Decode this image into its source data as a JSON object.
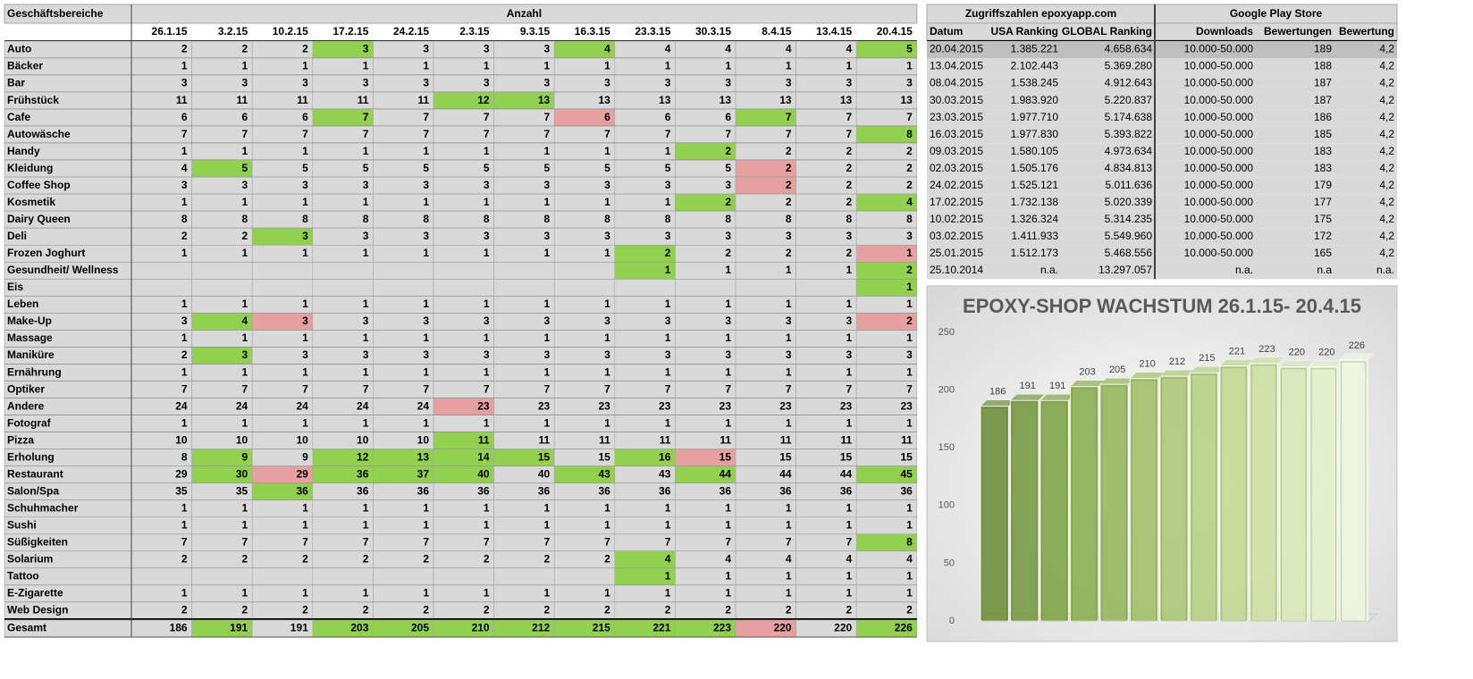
{
  "table": {
    "header": "Geschäftsbereiche",
    "group": "Anzahl",
    "columns": [
      "26.1.15",
      "3.2.15",
      "10.2.15",
      "17.2.15",
      "24.2.15",
      "2.3.15",
      "9.3.15",
      "16.3.15",
      "23.3.15",
      "30.3.15",
      "8.4.15",
      "13.4.15",
      "20.4.15"
    ],
    "rows": [
      {
        "label": "Auto",
        "values": [
          2,
          2,
          2,
          3,
          3,
          3,
          3,
          4,
          4,
          4,
          4,
          4,
          5
        ],
        "fill": [
          null,
          null,
          null,
          "#92d050",
          null,
          null,
          null,
          "#92d050",
          null,
          null,
          null,
          null,
          "#92d050"
        ]
      },
      {
        "label": "Bäcker",
        "values": [
          1,
          1,
          1,
          1,
          1,
          1,
          1,
          1,
          1,
          1,
          1,
          1,
          1
        ]
      },
      {
        "label": "Bar",
        "values": [
          3,
          3,
          3,
          3,
          3,
          3,
          3,
          3,
          3,
          3,
          3,
          3,
          3
        ]
      },
      {
        "label": "Frühstück",
        "values": [
          11,
          11,
          11,
          11,
          11,
          12,
          13,
          13,
          13,
          13,
          13,
          13,
          13
        ],
        "fill": [
          null,
          null,
          null,
          null,
          null,
          "#92d050",
          "#92d050",
          null,
          null,
          null,
          null,
          null,
          null
        ]
      },
      {
        "label": "Cafe",
        "values": [
          6,
          6,
          6,
          7,
          7,
          7,
          7,
          6,
          6,
          6,
          7,
          7,
          7
        ],
        "fill": [
          null,
          null,
          null,
          "#92d050",
          null,
          null,
          null,
          "#e6a0a0",
          null,
          null,
          "#92d050",
          null,
          null
        ]
      },
      {
        "label": "Autowäsche",
        "values": [
          7,
          7,
          7,
          7,
          7,
          7,
          7,
          7,
          7,
          7,
          7,
          7,
          8
        ],
        "fill": [
          null,
          null,
          null,
          null,
          null,
          null,
          null,
          null,
          null,
          null,
          null,
          null,
          "#92d050"
        ]
      },
      {
        "label": "Handy",
        "values": [
          1,
          1,
          1,
          1,
          1,
          1,
          1,
          1,
          1,
          2,
          2,
          2,
          2
        ],
        "fill": [
          null,
          null,
          null,
          null,
          null,
          null,
          null,
          null,
          null,
          "#92d050",
          null,
          null,
          null
        ]
      },
      {
        "label": "Kleidung",
        "values": [
          4,
          5,
          5,
          5,
          5,
          5,
          5,
          5,
          5,
          5,
          2,
          2,
          2
        ],
        "fill": [
          null,
          "#92d050",
          null,
          null,
          null,
          null,
          null,
          null,
          null,
          null,
          "#e6a0a0",
          null,
          null
        ]
      },
      {
        "label": "Coffee Shop",
        "values": [
          3,
          3,
          3,
          3,
          3,
          3,
          3,
          3,
          3,
          3,
          2,
          2,
          2
        ],
        "fill": [
          null,
          null,
          null,
          null,
          null,
          null,
          null,
          null,
          null,
          null,
          "#e6a0a0",
          null,
          null
        ]
      },
      {
        "label": "Kosmetik",
        "values": [
          1,
          1,
          1,
          1,
          1,
          1,
          1,
          1,
          1,
          2,
          2,
          2,
          4
        ],
        "fill": [
          null,
          null,
          null,
          null,
          null,
          null,
          null,
          null,
          null,
          "#92d050",
          null,
          null,
          "#92d050"
        ]
      },
      {
        "label": "Dairy Queen",
        "values": [
          8,
          8,
          8,
          8,
          8,
          8,
          8,
          8,
          8,
          8,
          8,
          8,
          8
        ]
      },
      {
        "label": "Deli",
        "values": [
          2,
          2,
          3,
          3,
          3,
          3,
          3,
          3,
          3,
          3,
          3,
          3,
          3
        ],
        "fill": [
          null,
          null,
          "#92d050",
          null,
          null,
          null,
          null,
          null,
          null,
          null,
          null,
          null,
          null
        ]
      },
      {
        "label": "Frozen Joghurt",
        "values": [
          1,
          1,
          1,
          1,
          1,
          1,
          1,
          1,
          2,
          2,
          2,
          2,
          1
        ],
        "fill": [
          null,
          null,
          null,
          null,
          null,
          null,
          null,
          null,
          "#92d050",
          null,
          null,
          null,
          "#e6a0a0"
        ]
      },
      {
        "label": "Gesundheit/ Wellness",
        "values": [
          null,
          null,
          null,
          null,
          null,
          null,
          null,
          null,
          1,
          1,
          1,
          1,
          2
        ],
        "fill": [
          null,
          null,
          null,
          null,
          null,
          null,
          null,
          null,
          "#92d050",
          null,
          null,
          null,
          "#92d050"
        ]
      },
      {
        "label": "Eis",
        "values": [
          null,
          null,
          null,
          null,
          null,
          null,
          null,
          null,
          null,
          null,
          null,
          null,
          1
        ],
        "fill": [
          null,
          null,
          null,
          null,
          null,
          null,
          null,
          null,
          null,
          null,
          null,
          null,
          "#92d050"
        ]
      },
      {
        "label": "Leben",
        "values": [
          1,
          1,
          1,
          1,
          1,
          1,
          1,
          1,
          1,
          1,
          1,
          1,
          1
        ]
      },
      {
        "label": "Make-Up",
        "values": [
          3,
          4,
          3,
          3,
          3,
          3,
          3,
          3,
          3,
          3,
          3,
          3,
          2
        ],
        "fill": [
          null,
          "#92d050",
          "#e6a0a0",
          null,
          null,
          null,
          null,
          null,
          null,
          null,
          null,
          null,
          "#e6a0a0"
        ]
      },
      {
        "label": "Massage",
        "values": [
          1,
          1,
          1,
          1,
          1,
          1,
          1,
          1,
          1,
          1,
          1,
          1,
          1
        ]
      },
      {
        "label": "Maniküre",
        "values": [
          2,
          3,
          3,
          3,
          3,
          3,
          3,
          3,
          3,
          3,
          3,
          3,
          3
        ],
        "fill": [
          null,
          "#92d050",
          null,
          null,
          null,
          null,
          null,
          null,
          null,
          null,
          null,
          null,
          null
        ]
      },
      {
        "label": "Ernährung",
        "values": [
          1,
          1,
          1,
          1,
          1,
          1,
          1,
          1,
          1,
          1,
          1,
          1,
          1
        ]
      },
      {
        "label": "Optiker",
        "values": [
          7,
          7,
          7,
          7,
          7,
          7,
          7,
          7,
          7,
          7,
          7,
          7,
          7
        ]
      },
      {
        "label": "Andere",
        "values": [
          24,
          24,
          24,
          24,
          24,
          23,
          23,
          23,
          23,
          23,
          23,
          23,
          23
        ],
        "fill": [
          null,
          null,
          null,
          null,
          null,
          "#e6a0a0",
          null,
          null,
          null,
          null,
          null,
          null,
          null
        ]
      },
      {
        "label": "Fotograf",
        "values": [
          1,
          1,
          1,
          1,
          1,
          1,
          1,
          1,
          1,
          1,
          1,
          1,
          1
        ]
      },
      {
        "label": "Pizza",
        "values": [
          10,
          10,
          10,
          10,
          10,
          11,
          11,
          11,
          11,
          11,
          11,
          11,
          11
        ],
        "fill": [
          null,
          null,
          null,
          null,
          null,
          "#92d050",
          null,
          null,
          null,
          null,
          null,
          null,
          null
        ]
      },
      {
        "label": "Erholung",
        "values": [
          8,
          9,
          9,
          12,
          13,
          14,
          15,
          15,
          16,
          15,
          15,
          15,
          15
        ],
        "fill": [
          null,
          "#92d050",
          null,
          "#92d050",
          "#92d050",
          "#92d050",
          "#92d050",
          null,
          "#92d050",
          "#e6a0a0",
          null,
          null,
          null
        ]
      },
      {
        "label": "Restaurant",
        "values": [
          29,
          30,
          29,
          36,
          37,
          40,
          40,
          43,
          43,
          44,
          44,
          44,
          45
        ],
        "fill": [
          null,
          "#92d050",
          "#e6a0a0",
          "#92d050",
          "#92d050",
          "#92d050",
          null,
          "#92d050",
          null,
          "#92d050",
          null,
          null,
          "#92d050"
        ]
      },
      {
        "label": "Salon/Spa",
        "values": [
          35,
          35,
          36,
          36,
          36,
          36,
          36,
          36,
          36,
          36,
          36,
          36,
          36
        ],
        "fill": [
          null,
          null,
          "#92d050",
          null,
          null,
          null,
          null,
          null,
          null,
          null,
          null,
          null,
          null
        ]
      },
      {
        "label": "Schuhmacher",
        "values": [
          1,
          1,
          1,
          1,
          1,
          1,
          1,
          1,
          1,
          1,
          1,
          1,
          1
        ]
      },
      {
        "label": "Sushi",
        "values": [
          1,
          1,
          1,
          1,
          1,
          1,
          1,
          1,
          1,
          1,
          1,
          1,
          1
        ]
      },
      {
        "label": "Süßigkeiten",
        "values": [
          7,
          7,
          7,
          7,
          7,
          7,
          7,
          7,
          7,
          7,
          7,
          7,
          8
        ],
        "fill": [
          null,
          null,
          null,
          null,
          null,
          null,
          null,
          null,
          null,
          null,
          null,
          null,
          "#92d050"
        ]
      },
      {
        "label": "Solarium",
        "values": [
          2,
          2,
          2,
          2,
          2,
          2,
          2,
          2,
          4,
          4,
          4,
          4,
          4
        ],
        "fill": [
          null,
          null,
          null,
          null,
          null,
          null,
          null,
          null,
          "#92d050",
          null,
          null,
          null,
          null
        ]
      },
      {
        "label": "Tattoo",
        "values": [
          null,
          null,
          null,
          null,
          null,
          null,
          null,
          null,
          1,
          1,
          1,
          1,
          1
        ],
        "fill": [
          null,
          null,
          null,
          null,
          null,
          null,
          null,
          null,
          "#92d050",
          null,
          null,
          null,
          null
        ]
      },
      {
        "label": "E-Zigarette",
        "values": [
          1,
          1,
          1,
          1,
          1,
          1,
          1,
          1,
          1,
          1,
          1,
          1,
          1
        ]
      },
      {
        "label": "Web Design",
        "values": [
          2,
          2,
          2,
          2,
          2,
          2,
          2,
          2,
          2,
          2,
          2,
          2,
          2
        ]
      }
    ],
    "total": {
      "label": "Gesamt",
      "values": [
        186,
        191,
        191,
        203,
        205,
        210,
        212,
        215,
        221,
        223,
        220,
        220,
        226
      ],
      "fill": [
        null,
        "#92d050",
        null,
        "#92d050",
        "#92d050",
        "#92d050",
        "#92d050",
        "#92d050",
        "#92d050",
        "#92d050",
        "#e6a0a0",
        null,
        "#92d050"
      ]
    }
  },
  "stats": {
    "group1": "Zugriffszahlen epoxyapp.com",
    "group2": "Google Play Store",
    "columns": [
      "Datum",
      "USA Ranking",
      "GLOBAL Ranking",
      "Downloads",
      "Bewertungen",
      "Bewertung"
    ],
    "rows": [
      [
        "20.04.2015",
        "1.385.221",
        "4.658.634",
        "10.000-50.000",
        "189",
        "4,2"
      ],
      [
        "13.04.2015",
        "2.102.443",
        "5.369.280",
        "10.000-50.000",
        "188",
        "4,2"
      ],
      [
        "08.04.2015",
        "1.538.245",
        "4.912.643",
        "10.000-50.000",
        "187",
        "4,2"
      ],
      [
        "30.03.2015",
        "1.983.920",
        "5.220.837",
        "10.000-50.000",
        "187",
        "4,2"
      ],
      [
        "23.03.2015",
        "1.977.710",
        "5.174.638",
        "10.000-50.000",
        "186",
        "4,2"
      ],
      [
        "16.03.2015",
        "1.977.830",
        "5.393.822",
        "10.000-50.000",
        "185",
        "4,2"
      ],
      [
        "09.03.2015",
        "1.580.105",
        "4.973.634",
        "10.000-50.000",
        "183",
        "4,2"
      ],
      [
        "02.03.2015",
        "1.505.176",
        "4.834.813",
        "10.000-50.000",
        "183",
        "4,2"
      ],
      [
        "24.02.2015",
        "1.525.121",
        "5.011.636",
        "10.000-50.000",
        "179",
        "4,2"
      ],
      [
        "17.02.2015",
        "1.732.138",
        "5.020.339",
        "10.000-50.000",
        "177",
        "4,2"
      ],
      [
        "10.02.2015",
        "1.326.324",
        "5.314.235",
        "10.000-50.000",
        "175",
        "4,2"
      ],
      [
        "03.02.2015",
        "1.411.933",
        "5.549.960",
        "10.000-50.000",
        "172",
        "4,2"
      ],
      [
        "25.01.2015",
        "1.512.173",
        "5.468.556",
        "10.000-50.000",
        "165",
        "4,2"
      ],
      [
        "25.10.2014",
        "n.a.",
        "13.297.057",
        "n.a.",
        "n.a",
        "n.a."
      ]
    ]
  },
  "chart_data": {
    "type": "bar",
    "title": "EPOXY-SHOP WACHSTUM 26.1.15- 20.4.15",
    "values": [
      186,
      191,
      191,
      203,
      205,
      210,
      212,
      215,
      221,
      223,
      220,
      220,
      226
    ],
    "colors": [
      "#6f8f3c",
      "#789a42",
      "#82a44a",
      "#8cae53",
      "#97b75e",
      "#a2c06a",
      "#acc877",
      "#b7d085",
      "#c2d894",
      "#cde0a5",
      "#d8e8b7",
      "#e3efca",
      "#eef6de"
    ],
    "ylim": [
      0,
      250
    ],
    "yticks": [
      0,
      50,
      100,
      150,
      200,
      250
    ]
  }
}
